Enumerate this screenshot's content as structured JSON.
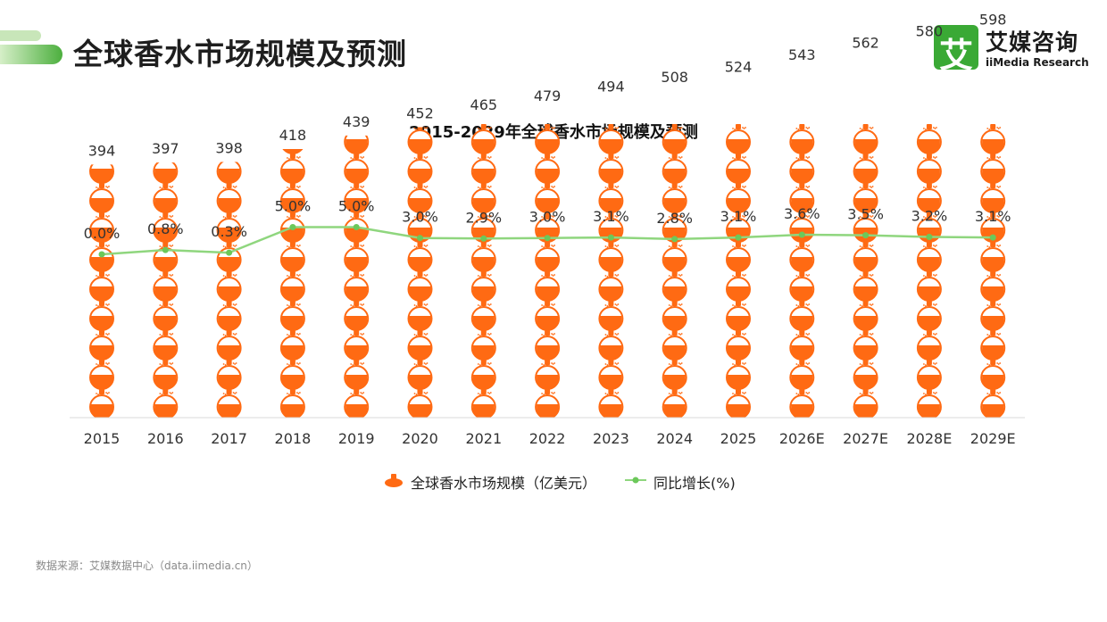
{
  "page": {
    "title": "全球香水市场规模及预测",
    "logo_mark": "艾",
    "logo_cn": "艾媒咨询",
    "logo_en": "iiMedia Research",
    "source": "数据来源：艾媒数据中心（data.iimedia.cn）"
  },
  "colors": {
    "bar": "#ff6a13",
    "line": "#8fd67e",
    "accent_green": "#3aa935"
  },
  "chart_data": {
    "type": "bar",
    "title": "2015-2029年全球香水市场规模及预测",
    "categories": [
      "2015",
      "2016",
      "2017",
      "2018",
      "2019",
      "2020",
      "2021",
      "2022",
      "2023",
      "2024",
      "2025",
      "2026E",
      "2027E",
      "2028E",
      "2029E"
    ],
    "series": [
      {
        "name": "全球香水市场规模（亿美元）",
        "type": "bar",
        "icon": "perfume-bottle-icon",
        "values": [
          394,
          397,
          398,
          418,
          439,
          452,
          465,
          479,
          494,
          508,
          524,
          543,
          562,
          580,
          598
        ],
        "labels": [
          "394",
          "397",
          "398",
          "418",
          "439",
          "452",
          "465",
          "479",
          "494",
          "508",
          "524",
          "543",
          "562",
          "580",
          "598"
        ]
      },
      {
        "name": "同比增长(%)",
        "type": "line",
        "values": [
          0.0,
          0.8,
          0.3,
          5.0,
          5.0,
          3.0,
          2.9,
          3.0,
          3.1,
          2.8,
          3.1,
          3.6,
          3.5,
          3.2,
          3.1
        ],
        "labels": [
          "0.0%",
          "0.8%",
          "0.3%",
          "5.0%",
          "5.0%",
          "3.0%",
          "2.9%",
          "3.0%",
          "3.1%",
          "2.8%",
          "3.1%",
          "3.6%",
          "3.5%",
          "3.2%",
          "3.1%"
        ]
      }
    ],
    "legend": "bottom-center",
    "grid": false
  }
}
